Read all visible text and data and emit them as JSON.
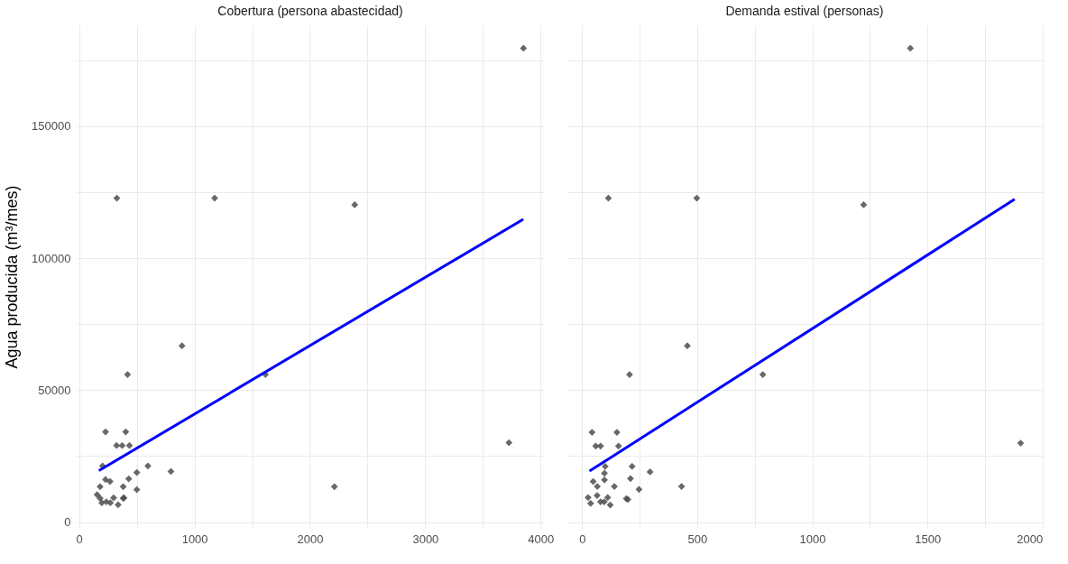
{
  "chart_data": [
    {
      "type": "scatter",
      "title": "Cobertura (persona abastecidad)",
      "ylabel": "Agua producida (m³/mes)",
      "grid": true,
      "xlim": [
        -29,
        4037
      ],
      "xticks": [
        0,
        {
          "value": 500,
          "label": null
        },
        1000,
        {
          "value": 1500,
          "label": null
        },
        2000,
        {
          "value": 2500,
          "label": null
        },
        3000,
        {
          "value": 3500,
          "label": null
        },
        4000
      ],
      "ylim": [
        -2200,
        188200
      ],
      "yticks": [
        0,
        {
          "value": 25000,
          "label": null
        },
        50000,
        {
          "value": 75000,
          "label": null
        },
        100000,
        {
          "value": 125000,
          "label": null
        },
        150000,
        {
          "value": 175000,
          "label": null
        }
      ],
      "series": [
        {
          "marker": "diamond",
          "color": "#4d4d4d",
          "x": [
            327,
            1175,
            2389,
            3852,
            892,
            420,
            1615,
            229,
            404,
            325,
            373,
            436,
            204,
            596,
            796,
            500,
            430,
            229,
            268,
            182,
            382,
            500,
            2213,
            3726,
            156,
            182,
            299,
            382,
            389,
            197,
            236,
            271,
            338
          ],
          "values": [
            122700,
            122700,
            120200,
            179500,
            66800,
            55900,
            55900,
            34200,
            34200,
            29000,
            29000,
            29000,
            21300,
            21300,
            19200,
            18800,
            16400,
            16100,
            15400,
            13400,
            13400,
            12300,
            13400,
            30100,
            10400,
            9000,
            9200,
            9000,
            9200,
            7300,
            7700,
            7300,
            6600
          ]
        },
        {
          "type": "line",
          "marker": "none",
          "color": "#0000ff",
          "x": [
            172,
            3850
          ],
          "values": [
            19500,
            114700
          ]
        }
      ]
    },
    {
      "type": "scatter",
      "title": "Demanda estival (personas)",
      "grid": true,
      "tick_labels": "x",
      "xlim": [
        -68,
        2001
      ],
      "xticks": [
        0,
        {
          "value": 250,
          "label": null
        },
        500,
        {
          "value": 750,
          "label": null
        },
        1000,
        {
          "value": 1250,
          "label": null
        },
        1500,
        {
          "value": 1750,
          "label": null
        },
        2000
      ],
      "ylim": [
        -2200,
        188200
      ],
      "yticks": [
        0,
        {
          "value": 25000,
          "label": null
        },
        50000,
        {
          "value": 75000,
          "label": null
        },
        100000,
        {
          "value": 125000,
          "label": null
        },
        150000,
        {
          "value": 175000,
          "label": null
        }
      ],
      "series": [
        {
          "marker": "diamond",
          "color": "#4d4d4d",
          "x": [
            114,
            498,
            1223,
            1426,
            457,
            206,
            785,
            43,
            151,
            59,
            80,
            158,
            1905,
            100,
            217,
            295,
            97,
            210,
            97,
            48,
            66,
            140,
            432,
            247,
            26,
            65,
            111,
            192,
            199,
            37,
            80,
            96,
            122
          ],
          "values": [
            122700,
            122700,
            120200,
            179500,
            66800,
            55900,
            55900,
            34000,
            34000,
            28800,
            28800,
            28800,
            29900,
            21100,
            21100,
            19000,
            18500,
            16500,
            16000,
            15400,
            13500,
            13500,
            13500,
            12400,
            9300,
            10100,
            9300,
            8900,
            8600,
            7100,
            7700,
            7700,
            6500
          ]
        },
        {
          "type": "line",
          "marker": "none",
          "color": "#0000ff",
          "x": [
            32,
            1879
          ],
          "values": [
            19300,
            122300
          ]
        }
      ]
    }
  ]
}
